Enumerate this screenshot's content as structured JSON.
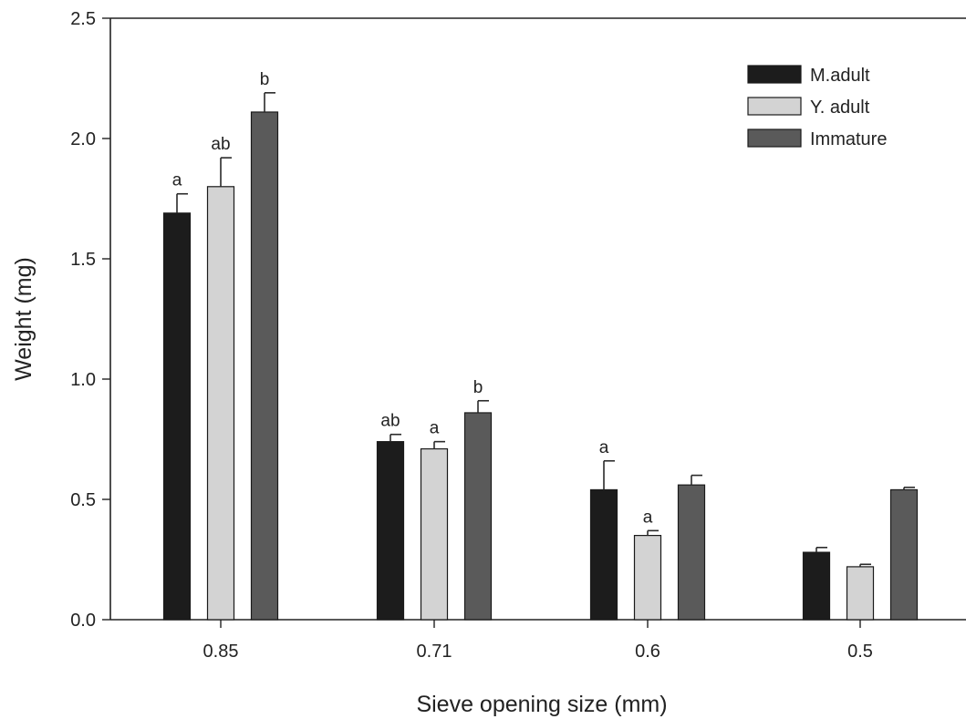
{
  "chart_data": {
    "type": "bar",
    "title": "",
    "xlabel": "Sieve opening size (mm)",
    "ylabel": "Weight (mg)",
    "ylim": [
      0,
      2.5
    ],
    "yticks": [
      "0.0",
      "0.5",
      "1.0",
      "1.5",
      "2.0",
      "2.5"
    ],
    "ytick_values": [
      0,
      0.5,
      1.0,
      1.5,
      2.0,
      2.5
    ],
    "categories": [
      "0.85",
      "0.71",
      "0.6",
      "0.5"
    ],
    "legend_position": "top-right",
    "grid": false,
    "series": [
      {
        "name": "M.adult",
        "color": "#1c1c1c",
        "values": [
          1.69,
          0.74,
          0.54,
          0.28
        ],
        "errors": [
          0.08,
          0.03,
          0.12,
          0.02
        ],
        "labels": [
          "a",
          "ab",
          "a",
          ""
        ]
      },
      {
        "name": "Y. adult",
        "color": "#d3d3d3",
        "values": [
          1.8,
          0.71,
          0.35,
          0.22
        ],
        "errors": [
          0.12,
          0.03,
          0.02,
          0.01
        ],
        "labels": [
          "ab",
          "a",
          "a",
          ""
        ]
      },
      {
        "name": "Immature",
        "color": "#5a5a5a",
        "values": [
          2.11,
          0.86,
          0.56,
          0.54
        ],
        "errors": [
          0.08,
          0.05,
          0.04,
          0.01
        ],
        "labels": [
          "b",
          "b",
          "",
          ""
        ]
      }
    ]
  }
}
